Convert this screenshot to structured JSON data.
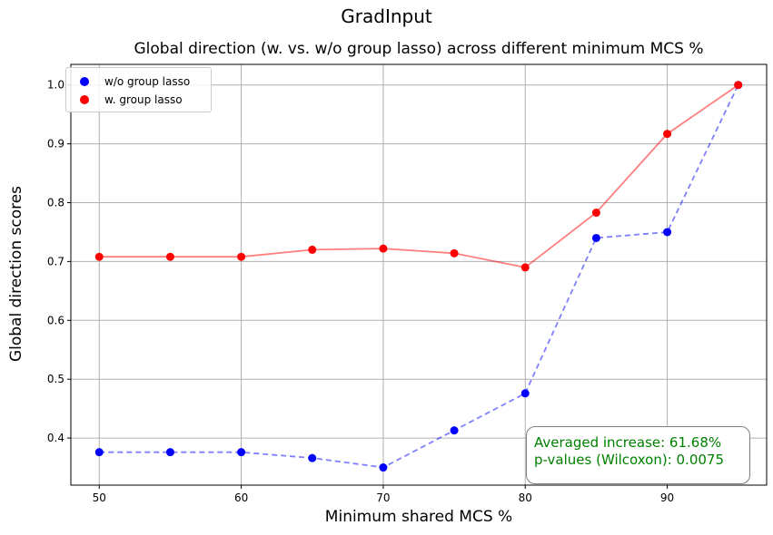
{
  "figure": {
    "suptitle": "GradInput"
  },
  "annotation": {
    "line1": "Averaged increase: 61.68%",
    "line2": "p-values (Wilcoxon): 0.0075",
    "color": "#008000"
  },
  "chart_data": {
    "type": "line",
    "title": "Global direction (w. vs. w/o group lasso) across different minimum MCS %",
    "xlabel": "Minimum shared MCS %",
    "ylabel": "Global direction scores",
    "x": [
      50,
      55,
      60,
      65,
      70,
      75,
      80,
      85,
      90,
      95
    ],
    "xticks": [
      50,
      60,
      70,
      80,
      90
    ],
    "yticks": [
      0.4,
      0.5,
      0.6,
      0.7,
      0.8,
      0.9,
      1.0
    ],
    "xlim": [
      48,
      97
    ],
    "ylim": [
      0.32,
      1.035
    ],
    "grid": true,
    "legend_position": "top-left",
    "series": [
      {
        "name": "w/o group lasso",
        "color": "#0000ff",
        "line_style": "dashed",
        "values": [
          0.376,
          0.376,
          0.376,
          0.366,
          0.35,
          0.413,
          0.476,
          0.74,
          0.75,
          1.0
        ]
      },
      {
        "name": "w. group lasso",
        "color": "#ff0000",
        "line_style": "solid",
        "values": [
          0.708,
          0.708,
          0.708,
          0.72,
          0.722,
          0.714,
          0.69,
          0.783,
          0.917,
          1.0
        ]
      }
    ]
  }
}
